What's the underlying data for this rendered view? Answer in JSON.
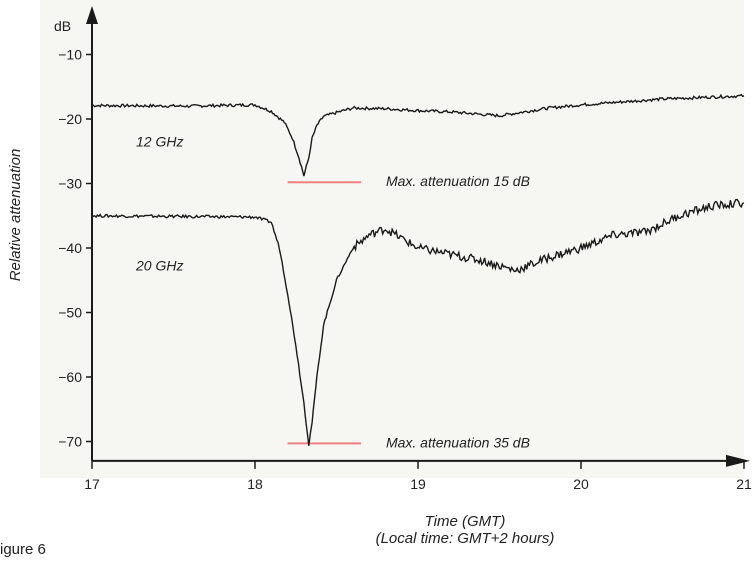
{
  "chart_data": {
    "type": "line",
    "ylabel": "Relative attenuation",
    "y_unit": "dB",
    "xlabel_line1": "Time (GMT)",
    "xlabel_line2": "(Local time: GMT+2 hours)",
    "xlim": [
      17,
      21.2
    ],
    "ylim": [
      -74,
      -5
    ],
    "x_ticks": [
      17,
      18,
      19,
      20,
      21
    ],
    "y_ticks": [
      -10,
      -20,
      -30,
      -40,
      -50,
      -60,
      -70
    ],
    "series": [
      {
        "name": "12 GHz",
        "color": "#1a1a1a",
        "x": [
          17.0,
          17.6,
          18.0,
          18.1,
          18.18,
          18.23,
          18.27,
          18.3,
          18.33,
          18.35,
          18.38,
          18.42,
          18.5,
          18.6,
          18.8,
          19.0,
          19.2,
          19.5,
          19.8,
          20.0,
          20.5,
          21.0
        ],
        "y": [
          -17.9,
          -18.0,
          -17.8,
          -18.8,
          -20.5,
          -23.0,
          -26.0,
          -28.8,
          -26.0,
          -23.0,
          -21.0,
          -19.6,
          -19.0,
          -18.3,
          -18.4,
          -18.7,
          -18.9,
          -19.5,
          -18.3,
          -17.8,
          -16.9,
          -16.4
        ]
      },
      {
        "name": "20 GHz",
        "color": "#1a1a1a",
        "x": [
          17.0,
          17.5,
          18.0,
          18.1,
          18.15,
          18.2,
          18.25,
          18.3,
          18.33,
          18.35,
          18.38,
          18.42,
          18.5,
          18.6,
          18.7,
          18.8,
          19.0,
          19.2,
          19.4,
          19.6,
          19.8,
          20.0,
          20.2,
          20.4,
          20.6,
          20.8,
          21.0
        ],
        "y": [
          -35.0,
          -35.1,
          -35.2,
          -36.0,
          -40.0,
          -47.0,
          -55.0,
          -64.0,
          -70.5,
          -67.0,
          -60.0,
          -52.0,
          -45.0,
          -40.0,
          -38.0,
          -37.0,
          -40.0,
          -41.0,
          -42.0,
          -43.5,
          -41.5,
          -40.0,
          -38.0,
          -37.5,
          -35.0,
          -33.5,
          -33.0
        ]
      }
    ],
    "markers": [
      {
        "label": "Max. attenuation 15 dB",
        "x_start": 18.2,
        "x_end": 18.65,
        "y": -29.8,
        "color": "#f08080"
      },
      {
        "label": "Max. attenuation 35 dB",
        "x_start": 18.2,
        "x_end": 18.65,
        "y": -70.3,
        "color": "#f08080"
      }
    ],
    "figure_caption": "igure 6"
  }
}
